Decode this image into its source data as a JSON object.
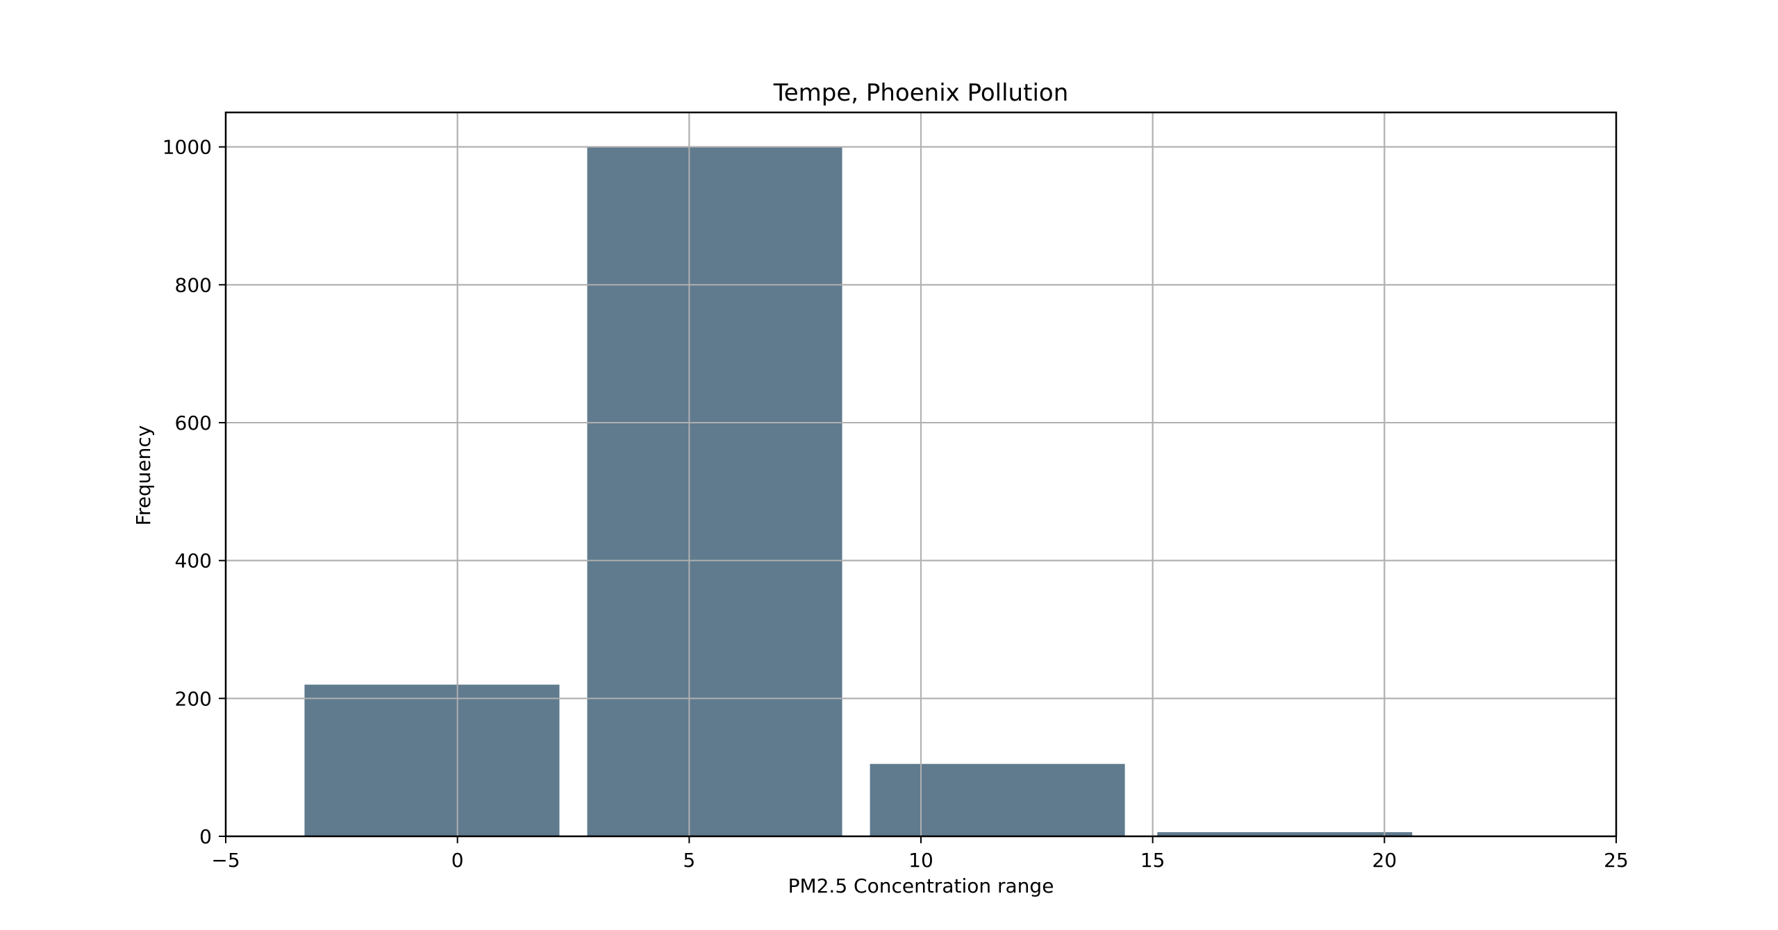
{
  "chart_data": {
    "type": "bar",
    "title": "Tempe, Phoenix Pollution",
    "xlabel": "PM2.5 Concentration range",
    "ylabel": "Frequency",
    "xlim": [
      -5,
      25
    ],
    "ylim": [
      0,
      1050
    ],
    "xticks": [
      -5,
      0,
      5,
      10,
      15,
      20,
      25
    ],
    "xtick_labels": [
      "−5",
      "0",
      "5",
      "10",
      "15",
      "20",
      "25"
    ],
    "yticks": [
      0,
      200,
      400,
      600,
      800,
      1000
    ],
    "ytick_labels": [
      "0",
      "200",
      "400",
      "600",
      "800",
      "1000"
    ],
    "grid": true,
    "bar_color": "#607b8e",
    "bars": [
      {
        "x_start": -3.3,
        "x_end": 2.2,
        "value": 220
      },
      {
        "x_start": 2.8,
        "x_end": 8.3,
        "value": 1000
      },
      {
        "x_start": 8.9,
        "x_end": 14.4,
        "value": 105
      },
      {
        "x_start": 15.1,
        "x_end": 20.6,
        "value": 6
      },
      {
        "x_start": 21.2,
        "x_end": 26.7,
        "value": 1
      }
    ]
  }
}
